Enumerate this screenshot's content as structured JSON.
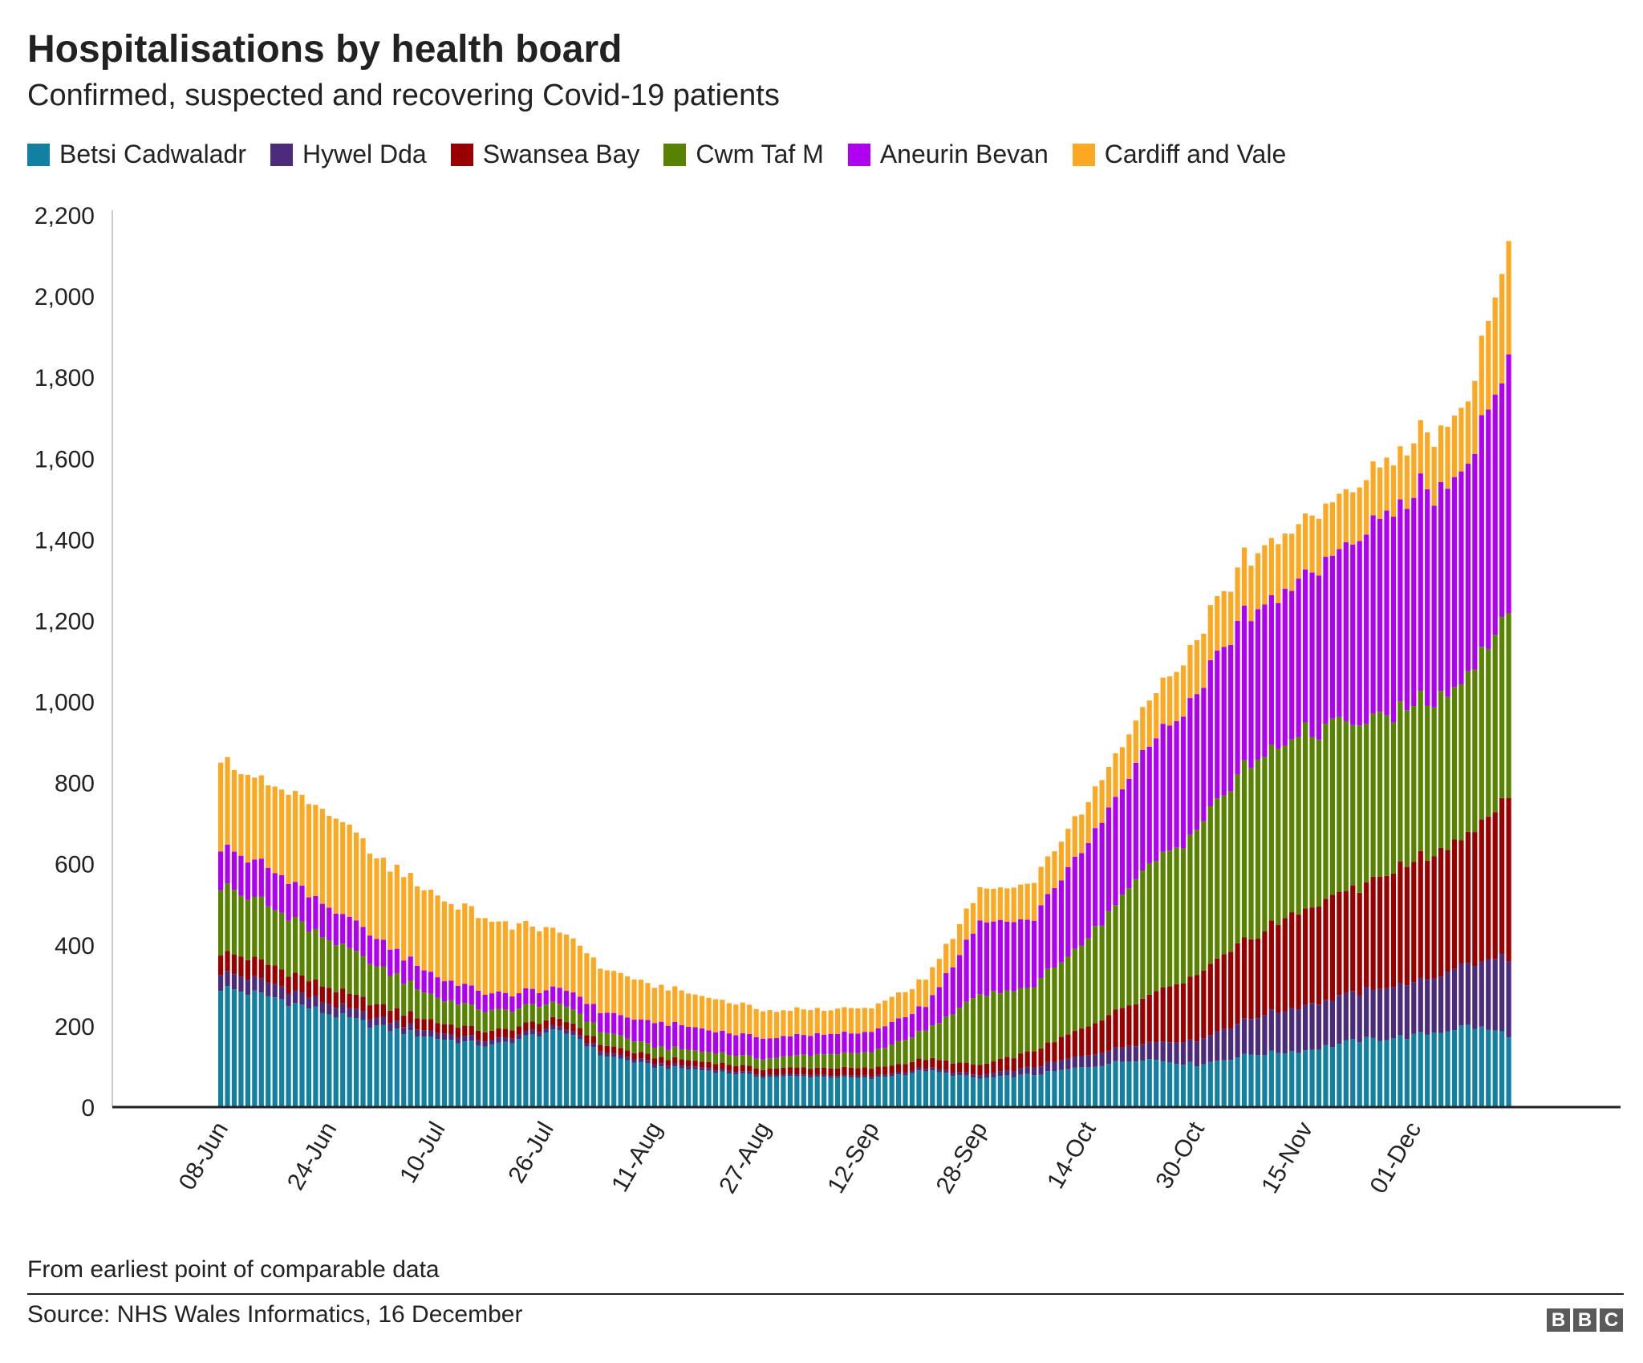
{
  "chart_data": {
    "type": "bar",
    "stacked": true,
    "title": "Hospitalisations by health board",
    "subtitle": "Confirmed, suspected and recovering Covid-19 patients",
    "xlabel": "",
    "ylabel": "",
    "ylim": [
      0,
      2200
    ],
    "yticks": [
      "0",
      "200",
      "400",
      "600",
      "800",
      "1,000",
      "1,200",
      "1,400",
      "1,600",
      "1,800",
      "2,000",
      "2,200"
    ],
    "ytick_values": [
      0,
      200,
      400,
      600,
      800,
      1000,
      1200,
      1400,
      1600,
      1800,
      2000,
      2200
    ],
    "x_start": "08-Jun",
    "num_days": 191,
    "xtick_labels": [
      "08-Jun",
      "24-Jun",
      "10-Jul",
      "26-Jul",
      "11-Aug",
      "27-Aug",
      "12-Sep",
      "28-Sep",
      "14-Oct",
      "30-Oct",
      "15-Nov",
      "01-Dec"
    ],
    "xtick_day_index": [
      0,
      16,
      32,
      48,
      64,
      80,
      96,
      112,
      128,
      144,
      160,
      176
    ],
    "series_keypoints_note": "Daily values interpolated between [day_index, value] keypoints read off the chart",
    "series": [
      {
        "name": "Betsi Cadwaladr",
        "color": "#1380a1",
        "keypoints": [
          [
            0,
            295
          ],
          [
            8,
            270
          ],
          [
            16,
            230
          ],
          [
            24,
            195
          ],
          [
            32,
            170
          ],
          [
            40,
            150
          ],
          [
            48,
            185
          ],
          [
            52,
            180
          ],
          [
            56,
            130
          ],
          [
            64,
            100
          ],
          [
            72,
            90
          ],
          [
            80,
            75
          ],
          [
            88,
            75
          ],
          [
            96,
            70
          ],
          [
            104,
            90
          ],
          [
            112,
            70
          ],
          [
            120,
            80
          ],
          [
            128,
            100
          ],
          [
            136,
            120
          ],
          [
            144,
            105
          ],
          [
            152,
            130
          ],
          [
            160,
            140
          ],
          [
            168,
            165
          ],
          [
            176,
            175
          ],
          [
            184,
            200
          ],
          [
            190,
            180
          ]
        ]
      },
      {
        "name": "Hywel Dda",
        "color": "#4d2b7c",
        "keypoints": [
          [
            0,
            40
          ],
          [
            16,
            25
          ],
          [
            32,
            15
          ],
          [
            48,
            10
          ],
          [
            64,
            8
          ],
          [
            80,
            5
          ],
          [
            96,
            5
          ],
          [
            112,
            8
          ],
          [
            128,
            30
          ],
          [
            136,
            40
          ],
          [
            144,
            60
          ],
          [
            152,
            90
          ],
          [
            160,
            110
          ],
          [
            168,
            120
          ],
          [
            176,
            130
          ],
          [
            184,
            150
          ],
          [
            190,
            195
          ]
        ]
      },
      {
        "name": "Swansea Bay",
        "color": "#990000",
        "keypoints": [
          [
            0,
            50
          ],
          [
            16,
            40
          ],
          [
            32,
            25
          ],
          [
            48,
            20
          ],
          [
            64,
            15
          ],
          [
            80,
            15
          ],
          [
            96,
            20
          ],
          [
            112,
            25
          ],
          [
            120,
            40
          ],
          [
            128,
            70
          ],
          [
            136,
            110
          ],
          [
            144,
            160
          ],
          [
            152,
            200
          ],
          [
            160,
            240
          ],
          [
            168,
            260
          ],
          [
            176,
            300
          ],
          [
            184,
            320
          ],
          [
            190,
            390
          ]
        ]
      },
      {
        "name": "Cwm Taf M",
        "color": "#588300",
        "keypoints": [
          [
            0,
            165
          ],
          [
            16,
            120
          ],
          [
            32,
            60
          ],
          [
            48,
            40
          ],
          [
            64,
            25
          ],
          [
            80,
            25
          ],
          [
            96,
            40
          ],
          [
            104,
            70
          ],
          [
            112,
            170
          ],
          [
            120,
            160
          ],
          [
            128,
            220
          ],
          [
            136,
            310
          ],
          [
            144,
            360
          ],
          [
            152,
            430
          ],
          [
            160,
            440
          ],
          [
            168,
            400
          ],
          [
            176,
            380
          ],
          [
            184,
            380
          ],
          [
            190,
            475
          ]
        ]
      },
      {
        "name": "Aneurin Bevan",
        "color": "#b000f0",
        "keypoints": [
          [
            0,
            100
          ],
          [
            16,
            80
          ],
          [
            32,
            50
          ],
          [
            48,
            35
          ],
          [
            64,
            60
          ],
          [
            80,
            50
          ],
          [
            96,
            50
          ],
          [
            104,
            60
          ],
          [
            112,
            180
          ],
          [
            120,
            170
          ],
          [
            128,
            240
          ],
          [
            136,
            290
          ],
          [
            144,
            340
          ],
          [
            152,
            370
          ],
          [
            160,
            380
          ],
          [
            168,
            460
          ],
          [
            176,
            520
          ],
          [
            184,
            520
          ],
          [
            190,
            620
          ]
        ]
      },
      {
        "name": "Cardiff and Vale",
        "color": "#fca823",
        "keypoints": [
          [
            0,
            210
          ],
          [
            8,
            210
          ],
          [
            16,
            230
          ],
          [
            24,
            200
          ],
          [
            32,
            200
          ],
          [
            40,
            180
          ],
          [
            48,
            150
          ],
          [
            56,
            110
          ],
          [
            64,
            90
          ],
          [
            72,
            80
          ],
          [
            80,
            70
          ],
          [
            88,
            60
          ],
          [
            96,
            60
          ],
          [
            104,
            65
          ],
          [
            112,
            80
          ],
          [
            120,
            90
          ],
          [
            128,
            100
          ],
          [
            136,
            110
          ],
          [
            144,
            130
          ],
          [
            152,
            140
          ],
          [
            160,
            140
          ],
          [
            168,
            130
          ],
          [
            176,
            130
          ],
          [
            184,
            160
          ],
          [
            190,
            280
          ]
        ]
      }
    ]
  },
  "footnote": "From earliest point of comparable data",
  "source": "Source: NHS Wales Informatics, 16 December",
  "logo": [
    "B",
    "B",
    "C"
  ]
}
